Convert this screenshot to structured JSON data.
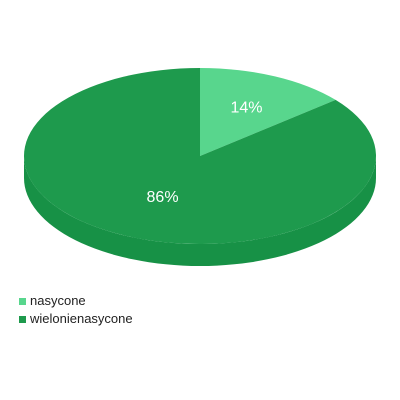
{
  "chart_data": {
    "type": "pie",
    "style": "3d",
    "slices": [
      {
        "label": "nasycone",
        "value": 14,
        "display": "14%",
        "color": "#58D68D"
      },
      {
        "label": "wielonienasycone",
        "value": 86,
        "display": "86%",
        "color": "#1E9A4D"
      }
    ],
    "legend_position": "bottom-left",
    "side_color": "#179146"
  }
}
